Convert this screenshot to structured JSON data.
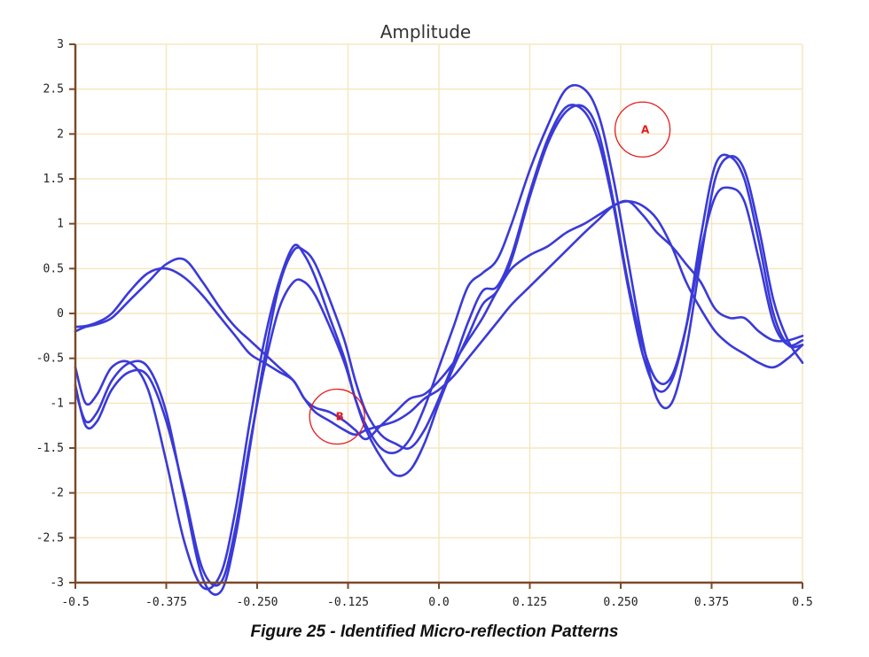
{
  "chart_data": {
    "type": "line",
    "title": "Amplitude",
    "xlim": [
      -0.5,
      0.5
    ],
    "ylim": [
      -3,
      3
    ],
    "x_ticks": [
      "-0.5",
      "-0.375",
      "-0.250",
      "-0.125",
      "0.0",
      "0.125",
      "0.250",
      "0.375",
      "0.5"
    ],
    "y_ticks": [
      "3",
      "2.5",
      "2",
      "1.5",
      "1",
      "0.5",
      "0",
      "-0.5",
      "-1",
      "-1.5",
      "-2",
      "-2.5",
      "-3"
    ],
    "grid": true,
    "colors": {
      "series": "#3a3ad8",
      "grid": "#f7e7c0",
      "axis": "#7a4a2a",
      "annotation": "#e41a1a"
    },
    "series": [
      {
        "x": [
          -0.5,
          -0.486,
          -0.47,
          -0.45,
          -0.425,
          -0.4,
          -0.375,
          -0.35,
          -0.325,
          -0.3,
          -0.28,
          -0.26,
          -0.24,
          -0.22,
          -0.2,
          -0.185,
          -0.17,
          -0.15,
          -0.13,
          -0.115,
          -0.1,
          -0.08,
          -0.06,
          -0.04,
          -0.02,
          0.0,
          0.02,
          0.04,
          0.06,
          0.08,
          0.1,
          0.125,
          0.15,
          0.175,
          0.2,
          0.22,
          0.24,
          0.26,
          0.28,
          0.3,
          0.32,
          0.34,
          0.36,
          0.38,
          0.4,
          0.42,
          0.44,
          0.46,
          0.48,
          0.5
        ],
        "y": [
          -0.2,
          -0.15,
          -0.12,
          -0.05,
          0.15,
          0.35,
          0.55,
          0.6,
          0.35,
          0.05,
          -0.15,
          -0.3,
          -0.45,
          -0.6,
          -0.75,
          -0.95,
          -1.1,
          -1.2,
          -1.3,
          -1.35,
          -1.3,
          -1.25,
          -1.2,
          -1.1,
          -0.95,
          -0.85,
          -0.7,
          -0.5,
          -0.3,
          -0.1,
          0.1,
          0.3,
          0.5,
          0.7,
          0.9,
          1.05,
          1.2,
          1.25,
          1.2,
          1.05,
          0.75,
          0.35,
          0.05,
          -0.2,
          -0.35,
          -0.45,
          -0.55,
          -0.6,
          -0.5,
          -0.35
        ]
      },
      {
        "x": [
          -0.5,
          -0.486,
          -0.47,
          -0.45,
          -0.425,
          -0.4,
          -0.375,
          -0.35,
          -0.325,
          -0.3,
          -0.28,
          -0.26,
          -0.24,
          -0.22,
          -0.2,
          -0.185,
          -0.17,
          -0.15,
          -0.13,
          -0.115,
          -0.1,
          -0.08,
          -0.06,
          -0.04,
          -0.02,
          0.0,
          0.02,
          0.04,
          0.06,
          0.08,
          0.1,
          0.125,
          0.15,
          0.175,
          0.2,
          0.22,
          0.24,
          0.26,
          0.28,
          0.3,
          0.32,
          0.34,
          0.36,
          0.38,
          0.4,
          0.42,
          0.44,
          0.46,
          0.48,
          0.5
        ],
        "y": [
          -0.15,
          -0.14,
          -0.1,
          0.0,
          0.25,
          0.45,
          0.5,
          0.4,
          0.2,
          -0.05,
          -0.25,
          -0.45,
          -0.55,
          -0.65,
          -0.75,
          -0.95,
          -1.05,
          -1.1,
          -1.2,
          -1.3,
          -1.4,
          -1.25,
          -1.1,
          -0.95,
          -0.9,
          -0.75,
          -0.55,
          -0.3,
          -0.05,
          0.25,
          0.5,
          0.65,
          0.75,
          0.9,
          1.0,
          1.1,
          1.2,
          1.25,
          1.1,
          0.9,
          0.75,
          0.55,
          0.35,
          0.05,
          -0.05,
          -0.05,
          -0.2,
          -0.3,
          -0.3,
          -0.25
        ]
      },
      {
        "x": [
          -0.5,
          -0.486,
          -0.47,
          -0.45,
          -0.425,
          -0.4,
          -0.375,
          -0.35,
          -0.325,
          -0.3,
          -0.28,
          -0.26,
          -0.24,
          -0.22,
          -0.2,
          -0.185,
          -0.17,
          -0.15,
          -0.13,
          -0.115,
          -0.1,
          -0.08,
          -0.06,
          -0.04,
          -0.02,
          0.0,
          0.02,
          0.04,
          0.06,
          0.08,
          0.1,
          0.125,
          0.15,
          0.175,
          0.2,
          0.22,
          0.24,
          0.26,
          0.28,
          0.3,
          0.32,
          0.34,
          0.36,
          0.38,
          0.4,
          0.42,
          0.44,
          0.46,
          0.48,
          0.5
        ],
        "y": [
          -0.6,
          -1.0,
          -0.9,
          -0.6,
          -0.55,
          -0.85,
          -1.65,
          -2.55,
          -3.05,
          -2.9,
          -2.2,
          -1.2,
          -0.3,
          0.35,
          0.75,
          0.65,
          0.4,
          -0.05,
          -0.5,
          -0.95,
          -1.25,
          -1.5,
          -1.55,
          -1.4,
          -1.05,
          -0.6,
          -0.15,
          0.3,
          0.45,
          0.6,
          1.0,
          1.6,
          2.1,
          2.5,
          2.5,
          2.2,
          1.5,
          0.6,
          -0.3,
          -0.95,
          -1.0,
          -0.4,
          0.6,
          1.5,
          1.75,
          1.6,
          0.95,
          0.15,
          -0.3,
          -0.55
        ]
      },
      {
        "x": [
          -0.5,
          -0.486,
          -0.47,
          -0.45,
          -0.425,
          -0.4,
          -0.375,
          -0.35,
          -0.325,
          -0.3,
          -0.28,
          -0.26,
          -0.24,
          -0.22,
          -0.2,
          -0.185,
          -0.17,
          -0.15,
          -0.13,
          -0.115,
          -0.1,
          -0.08,
          -0.06,
          -0.04,
          -0.02,
          0.0,
          0.02,
          0.04,
          0.06,
          0.08,
          0.1,
          0.125,
          0.15,
          0.175,
          0.2,
          0.22,
          0.24,
          0.26,
          0.28,
          0.3,
          0.32,
          0.34,
          0.36,
          0.38,
          0.4,
          0.42,
          0.44,
          0.46,
          0.48,
          0.5
        ],
        "y": [
          -0.85,
          -1.2,
          -1.1,
          -0.75,
          -0.55,
          -0.6,
          -1.1,
          -2.05,
          -2.95,
          -3.1,
          -2.5,
          -1.5,
          -0.5,
          0.3,
          0.7,
          0.7,
          0.55,
          0.15,
          -0.3,
          -0.75,
          -1.1,
          -1.35,
          -1.45,
          -1.5,
          -1.3,
          -0.95,
          -0.55,
          -0.1,
          0.25,
          0.3,
          0.65,
          1.35,
          1.95,
          2.3,
          2.25,
          1.9,
          1.2,
          0.3,
          -0.45,
          -0.85,
          -0.75,
          -0.15,
          0.85,
          1.65,
          1.75,
          1.5,
          0.8,
          0.0,
          -0.35,
          -0.35
        ]
      },
      {
        "x": [
          -0.5,
          -0.486,
          -0.47,
          -0.45,
          -0.425,
          -0.4,
          -0.375,
          -0.35,
          -0.325,
          -0.3,
          -0.28,
          -0.26,
          -0.24,
          -0.22,
          -0.2,
          -0.185,
          -0.17,
          -0.15,
          -0.13,
          -0.115,
          -0.1,
          -0.08,
          -0.06,
          -0.04,
          -0.02,
          0.0,
          0.02,
          0.04,
          0.06,
          0.08,
          0.1,
          0.125,
          0.15,
          0.175,
          0.2,
          0.22,
          0.24,
          0.26,
          0.28,
          0.3,
          0.32,
          0.34,
          0.36,
          0.38,
          0.4,
          0.42,
          0.44,
          0.46,
          0.48,
          0.5
        ],
        "y": [
          -0.8,
          -1.25,
          -1.2,
          -0.85,
          -0.65,
          -0.7,
          -1.2,
          -2.0,
          -2.85,
          -3.0,
          -2.4,
          -1.45,
          -0.6,
          0.05,
          0.35,
          0.35,
          0.2,
          -0.15,
          -0.55,
          -0.95,
          -1.3,
          -1.6,
          -1.8,
          -1.75,
          -1.45,
          -1.0,
          -0.6,
          -0.25,
          0.1,
          0.25,
          0.6,
          1.3,
          1.9,
          2.25,
          2.3,
          2.0,
          1.25,
          0.35,
          -0.35,
          -0.75,
          -0.7,
          -0.15,
          0.7,
          1.3,
          1.4,
          1.25,
          0.6,
          -0.1,
          -0.35,
          -0.3
        ]
      }
    ],
    "annotations": [
      {
        "label": "A",
        "x": 0.28,
        "y": 2.05
      },
      {
        "label": "B",
        "x": -0.14,
        "y": -1.15
      }
    ]
  },
  "caption": "Figure 25 - Identified Micro-reflection Patterns"
}
